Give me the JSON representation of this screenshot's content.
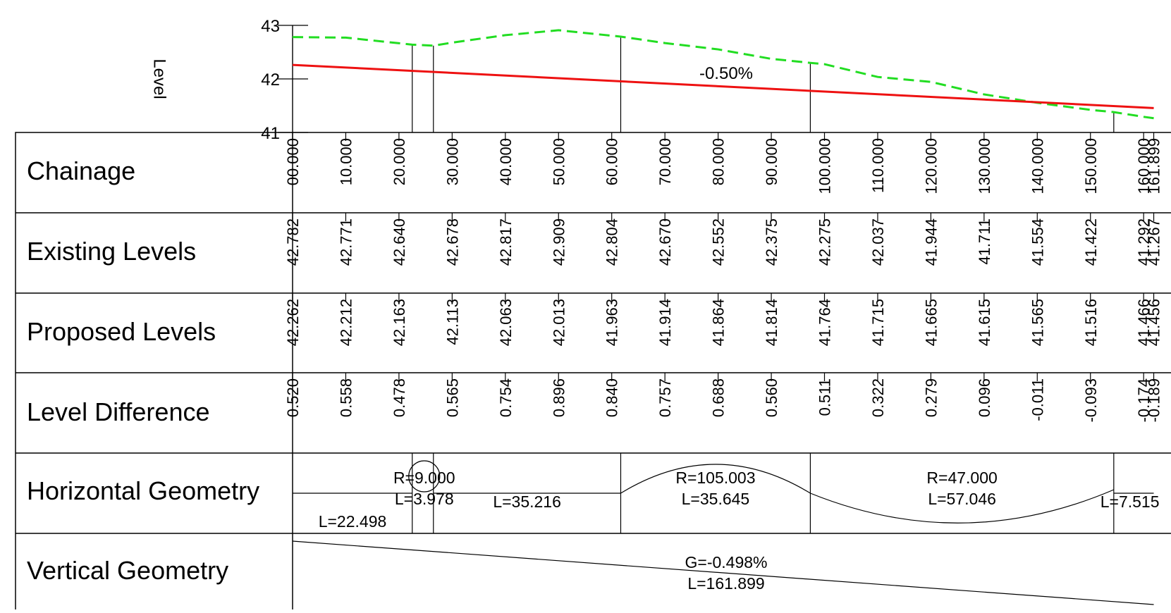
{
  "chart_data": {
    "type": "line",
    "title": "",
    "ylabel": "Level",
    "ylim": [
      41,
      43
    ],
    "yticks": [
      "41",
      "42",
      "43"
    ],
    "grade_label": "-0.50%",
    "x": [
      0,
      10,
      20,
      30,
      40,
      50,
      60,
      70,
      80,
      90,
      100,
      110,
      120,
      130,
      140,
      150,
      160,
      161.899
    ],
    "series": [
      {
        "name": "Existing Levels",
        "color": "#22dd22",
        "style": "dashed",
        "x": [
          0,
          10,
          22.498,
          26.476,
          30,
          40,
          50,
          61.692,
          70,
          80,
          90,
          97.337,
          100,
          110,
          120,
          130,
          140,
          150,
          154.384,
          160,
          161.899
        ],
        "values": [
          42.782,
          42.771,
          42.64,
          42.621,
          42.678,
          42.817,
          42.909,
          42.79,
          42.67,
          42.552,
          42.375,
          42.3,
          42.275,
          42.037,
          41.944,
          41.711,
          41.554,
          41.422,
          41.38,
          41.292,
          41.267
        ]
      },
      {
        "name": "Proposed Levels",
        "color": "#ee1111",
        "style": "solid",
        "x": [
          0,
          161.899
        ],
        "values": [
          42.262,
          41.456
        ]
      }
    ],
    "markers_x": [
      22.498,
      26.476,
      61.692,
      97.337,
      154.384
    ],
    "rows": [
      {
        "label": "Chainage",
        "ticks": [
          {
            "x": 0,
            "text": "00.000"
          },
          {
            "x": 10,
            "text": "10.000"
          },
          {
            "x": 20,
            "text": "20.000"
          },
          {
            "x": 30,
            "text": "30.000"
          },
          {
            "x": 40,
            "text": "40.000"
          },
          {
            "x": 50,
            "text": "50.000"
          },
          {
            "x": 60,
            "text": "60.000"
          },
          {
            "x": 70,
            "text": "70.000"
          },
          {
            "x": 80,
            "text": "80.000"
          },
          {
            "x": 90,
            "text": "90.000"
          },
          {
            "x": 100,
            "text": "100.000"
          },
          {
            "x": 110,
            "text": "110.000"
          },
          {
            "x": 120,
            "text": "120.000"
          },
          {
            "x": 130,
            "text": "130.000"
          },
          {
            "x": 140,
            "text": "140.000"
          },
          {
            "x": 150,
            "text": "150.000"
          },
          {
            "x": 160,
            "text": "160.000"
          },
          {
            "x": 161.899,
            "text": "161.899"
          }
        ]
      },
      {
        "label": "Existing Levels",
        "ticks": [
          {
            "x": 0,
            "text": "42.782"
          },
          {
            "x": 10,
            "text": "42.771"
          },
          {
            "x": 20,
            "text": "42.640"
          },
          {
            "x": 30,
            "text": "42.678"
          },
          {
            "x": 40,
            "text": "42.817"
          },
          {
            "x": 50,
            "text": "42.909"
          },
          {
            "x": 60,
            "text": "42.804"
          },
          {
            "x": 70,
            "text": "42.670"
          },
          {
            "x": 80,
            "text": "42.552"
          },
          {
            "x": 90,
            "text": "42.375"
          },
          {
            "x": 100,
            "text": "42.275"
          },
          {
            "x": 110,
            "text": "42.037"
          },
          {
            "x": 120,
            "text": "41.944"
          },
          {
            "x": 130,
            "text": "41.711"
          },
          {
            "x": 140,
            "text": "41.554"
          },
          {
            "x": 150,
            "text": "41.422"
          },
          {
            "x": 160,
            "text": "41.292"
          },
          {
            "x": 161.899,
            "text": "41.267"
          }
        ]
      },
      {
        "label": "Proposed Levels",
        "ticks": [
          {
            "x": 0,
            "text": "42.262"
          },
          {
            "x": 10,
            "text": "42.212"
          },
          {
            "x": 20,
            "text": "42.163"
          },
          {
            "x": 30,
            "text": "42.113"
          },
          {
            "x": 40,
            "text": "42.063"
          },
          {
            "x": 50,
            "text": "42.013"
          },
          {
            "x": 60,
            "text": "41.963"
          },
          {
            "x": 70,
            "text": "41.914"
          },
          {
            "x": 80,
            "text": "41.864"
          },
          {
            "x": 90,
            "text": "41.814"
          },
          {
            "x": 100,
            "text": "41.764"
          },
          {
            "x": 110,
            "text": "41.715"
          },
          {
            "x": 120,
            "text": "41.665"
          },
          {
            "x": 130,
            "text": "41.615"
          },
          {
            "x": 140,
            "text": "41.565"
          },
          {
            "x": 150,
            "text": "41.516"
          },
          {
            "x": 160,
            "text": "41.466"
          },
          {
            "x": 161.899,
            "text": "41.456"
          }
        ]
      },
      {
        "label": "Level Difference",
        "ticks": [
          {
            "x": 0,
            "text": "0.520"
          },
          {
            "x": 10,
            "text": "0.558"
          },
          {
            "x": 20,
            "text": "0.478"
          },
          {
            "x": 30,
            "text": "0.565"
          },
          {
            "x": 40,
            "text": "0.754"
          },
          {
            "x": 50,
            "text": "0.896"
          },
          {
            "x": 60,
            "text": "0.840"
          },
          {
            "x": 70,
            "text": "0.757"
          },
          {
            "x": 80,
            "text": "0.688"
          },
          {
            "x": 90,
            "text": "0.560"
          },
          {
            "x": 100,
            "text": "0.511"
          },
          {
            "x": 110,
            "text": "0.322"
          },
          {
            "x": 120,
            "text": "0.279"
          },
          {
            "x": 130,
            "text": "0.096"
          },
          {
            "x": 140,
            "text": "-0.011"
          },
          {
            "x": 150,
            "text": "-0.093"
          },
          {
            "x": 160,
            "text": "-0.174"
          },
          {
            "x": 161.899,
            "text": "-0.189"
          }
        ]
      },
      {
        "label": "Horizontal Geometry",
        "elements": [
          {
            "type": "straight",
            "x0": 0,
            "x1": 22.498,
            "text": "L=22.498"
          },
          {
            "type": "curve",
            "x0": 22.498,
            "x1": 26.476,
            "radius": "R=9.000",
            "length": "L=3.978"
          },
          {
            "type": "straight",
            "x0": 26.476,
            "x1": 61.692,
            "text": "L=35.216"
          },
          {
            "type": "curve",
            "x0": 61.692,
            "x1": 97.337,
            "radius": "R=105.003",
            "length": "L=35.645"
          },
          {
            "type": "curve",
            "x0": 97.337,
            "x1": 154.384,
            "radius": "R=47.000",
            "length": "L=57.046"
          },
          {
            "type": "straight",
            "x0": 154.384,
            "x1": 161.899,
            "text": "L=7.515"
          }
        ]
      },
      {
        "label": "Vertical Geometry",
        "grade": "G=-0.498%",
        "length": "L=161.899"
      }
    ]
  }
}
